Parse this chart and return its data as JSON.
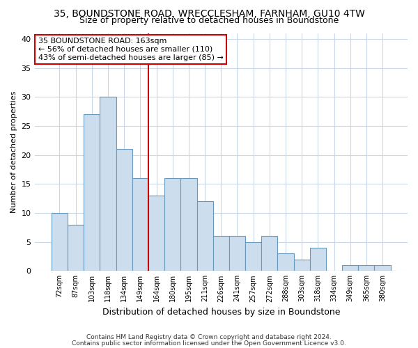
{
  "title_line1": "35, BOUNDSTONE ROAD, WRECCLESHAM, FARNHAM, GU10 4TW",
  "title_line2": "Size of property relative to detached houses in Boundstone",
  "xlabel": "Distribution of detached houses by size in Boundstone",
  "ylabel": "Number of detached properties",
  "categories": [
    "72sqm",
    "87sqm",
    "103sqm",
    "118sqm",
    "134sqm",
    "149sqm",
    "164sqm",
    "180sqm",
    "195sqm",
    "211sqm",
    "226sqm",
    "241sqm",
    "257sqm",
    "272sqm",
    "288sqm",
    "303sqm",
    "318sqm",
    "334sqm",
    "349sqm",
    "365sqm",
    "380sqm"
  ],
  "values": [
    10,
    8,
    27,
    30,
    21,
    16,
    13,
    16,
    16,
    12,
    6,
    6,
    5,
    6,
    3,
    2,
    4,
    0,
    1,
    1,
    1
  ],
  "bar_color": "#ccdded",
  "bar_edge_color": "#6699bb",
  "reference_line_index": 6,
  "annotation_title": "35 BOUNDSTONE ROAD: 163sqm",
  "annotation_line1": "← 56% of detached houses are smaller (110)",
  "annotation_line2": "43% of semi-detached houses are larger (85) →",
  "annotation_box_color": "#ffffff",
  "annotation_box_edge_color": "#cc0000",
  "vline_color": "#cc0000",
  "ylim": [
    0,
    41
  ],
  "yticks": [
    0,
    5,
    10,
    15,
    20,
    25,
    30,
    35,
    40
  ],
  "footer_line1": "Contains HM Land Registry data © Crown copyright and database right 2024.",
  "footer_line2": "Contains public sector information licensed under the Open Government Licence v3.0.",
  "bg_color": "#ffffff",
  "plot_bg_color": "#ffffff",
  "grid_color": "#c8d8e8",
  "title_fontsize": 10,
  "subtitle_fontsize": 9,
  "xlabel_fontsize": 9,
  "ylabel_fontsize": 8,
  "tick_fontsize": 7,
  "footer_fontsize": 6.5,
  "annot_fontsize": 8
}
